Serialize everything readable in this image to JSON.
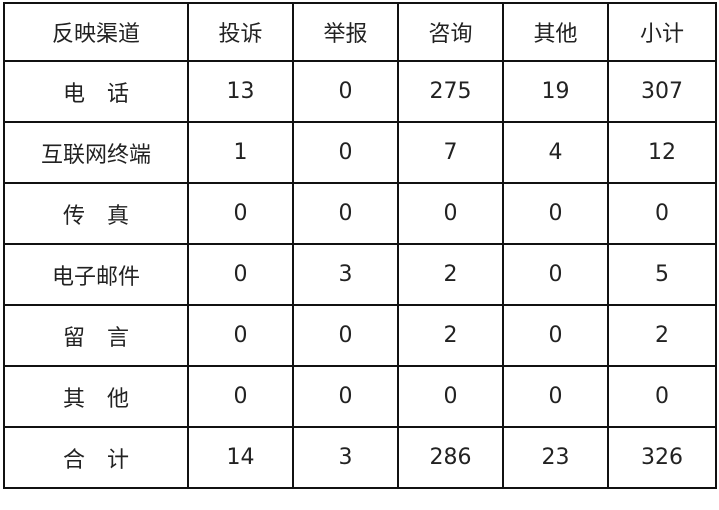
{
  "headers": [
    "反映渠道",
    "投诉",
    "举报",
    "咨询",
    "其他",
    "小计"
  ],
  "rows": [
    {
      "channel": "电　话",
      "values": [
        "13",
        "0",
        "275",
        "19",
        "307"
      ]
    },
    {
      "channel": "互联网终端",
      "values": [
        "1",
        "0",
        "7",
        "4",
        "12"
      ]
    },
    {
      "channel": "传　真",
      "values": [
        "0",
        "0",
        "0",
        "0",
        "0"
      ]
    },
    {
      "channel": "电子邮件",
      "values": [
        "0",
        "3",
        "2",
        "0",
        "5"
      ]
    },
    {
      "channel": "留　言",
      "values": [
        "0",
        "0",
        "2",
        "0",
        "2"
      ]
    },
    {
      "channel": "其　他",
      "values": [
        "0",
        "0",
        "0",
        "0",
        "0"
      ]
    },
    {
      "channel": "合　计",
      "values": [
        "14",
        "3",
        "286",
        "23",
        "326"
      ]
    }
  ]
}
